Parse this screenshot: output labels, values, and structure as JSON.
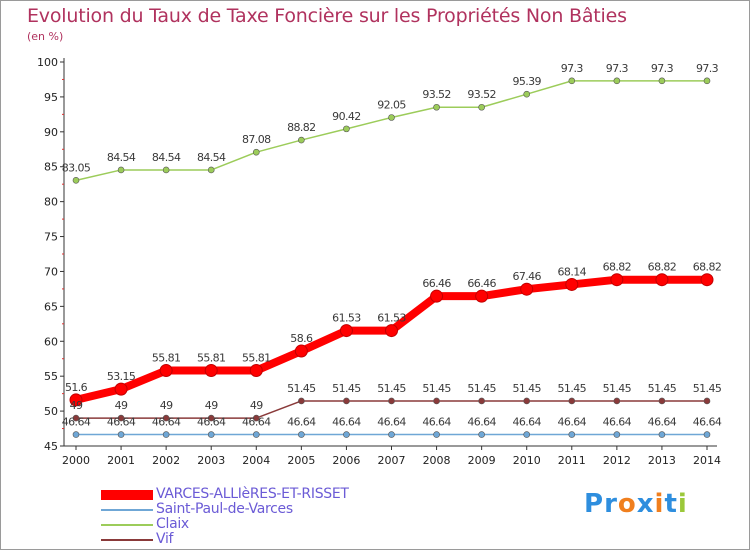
{
  "title": "Evolution du Taux de Taxe Foncière sur les Propriétés Non Bâties",
  "unit": "(en %)",
  "brand": {
    "text": "Proxiti",
    "letters": [
      {
        "ch": "P",
        "color": "#2e8ede"
      },
      {
        "ch": "r",
        "color": "#2e8ede"
      },
      {
        "ch": "o",
        "color": "#f07f1e"
      },
      {
        "ch": "x",
        "color": "#2e8ede"
      },
      {
        "ch": "i",
        "color": "#f07f1e"
      },
      {
        "ch": "t",
        "color": "#2e8ede"
      },
      {
        "ch": "i",
        "color": "#9bc83a"
      }
    ]
  },
  "chart_data": {
    "type": "line",
    "x": [
      "2000",
      "2001",
      "2002",
      "2003",
      "2004",
      "2005",
      "2006",
      "2007",
      "2008",
      "2009",
      "2010",
      "2011",
      "2012",
      "2013",
      "2014"
    ],
    "ylim": [
      45,
      100
    ],
    "yticks": [
      45,
      50,
      55,
      60,
      65,
      70,
      75,
      80,
      85,
      90,
      95,
      100
    ],
    "grid": false,
    "legend_position": "bottom-left",
    "series": [
      {
        "name": "VARCES-ALLIèRES-ET-RISSET",
        "color": "#ff0000",
        "values": [
          51.6,
          53.15,
          55.81,
          55.81,
          55.81,
          58.6,
          61.53,
          61.53,
          66.46,
          66.46,
          67.46,
          68.14,
          68.82,
          68.82,
          68.82
        ],
        "labels": [
          "51.6",
          "53.15",
          "55.81",
          "55.81",
          "55.81",
          "58.6",
          "61.53",
          "61.53",
          "66.46",
          "66.46",
          "67.46",
          "68.14",
          "68.82",
          "68.82",
          "68.82"
        ]
      },
      {
        "name": "Saint-Paul-de-Varces",
        "color": "#6fa7d6",
        "values": [
          46.64,
          46.64,
          46.64,
          46.64,
          46.64,
          46.64,
          46.64,
          46.64,
          46.64,
          46.64,
          46.64,
          46.64,
          46.64,
          46.64,
          46.64
        ],
        "labels": [
          "46.64",
          "46.64",
          "46.64",
          "46.64",
          "46.64",
          "46.64",
          "46.64",
          "46.64",
          "46.64",
          "46.64",
          "46.64",
          "46.64",
          "46.64",
          "46.64",
          "46.64"
        ]
      },
      {
        "name": "Claix",
        "color": "#9ccc5a",
        "values": [
          83.05,
          84.54,
          84.54,
          84.54,
          87.08,
          88.82,
          90.42,
          92.05,
          93.52,
          93.52,
          95.39,
          97.3,
          97.3,
          97.3,
          97.3
        ],
        "labels": [
          "83.05",
          "84.54",
          "84.54",
          "84.54",
          "87.08",
          "88.82",
          "90.42",
          "92.05",
          "93.52",
          "93.52",
          "95.39",
          "97.3",
          "97.3",
          "97.3",
          "97.3"
        ]
      },
      {
        "name": "Vif",
        "color": "#8a3a3a",
        "values": [
          49,
          49,
          49,
          49,
          49,
          51.45,
          51.45,
          51.45,
          51.45,
          51.45,
          51.45,
          51.45,
          51.45,
          51.45,
          51.45
        ],
        "labels": [
          "49",
          "49",
          "49",
          "49",
          "49",
          "51.45",
          "51.45",
          "51.45",
          "51.45",
          "51.45",
          "51.45",
          "51.45",
          "51.45",
          "51.45",
          "51.45"
        ]
      }
    ]
  }
}
